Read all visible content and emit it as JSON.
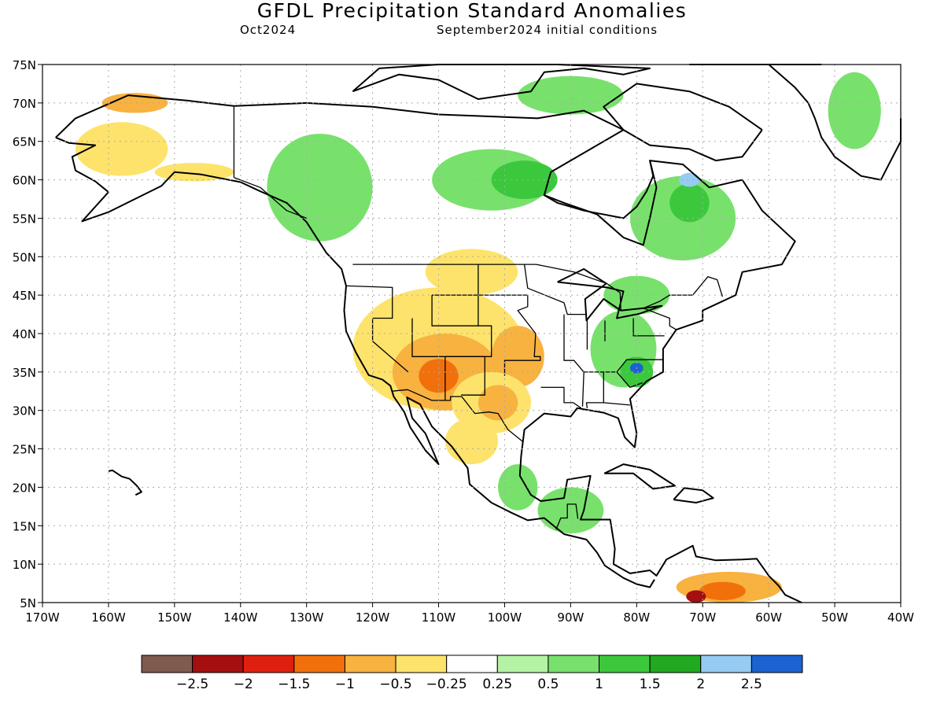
{
  "title": "GFDL Precipitation Standard Anomalies",
  "subtitle_left": "Oct2024",
  "subtitle_right": "September2024 initial conditions",
  "map": {
    "lon_range": [
      -170,
      -40
    ],
    "lat_range": [
      5,
      75
    ],
    "lon_ticks": [
      "170W",
      "160W",
      "150W",
      "140W",
      "130W",
      "120W",
      "110W",
      "100W",
      "90W",
      "80W",
      "70W",
      "60W",
      "50W",
      "40W"
    ],
    "lat_ticks": [
      "75N",
      "70N",
      "65N",
      "60N",
      "55N",
      "50N",
      "45N",
      "40N",
      "35N",
      "30N",
      "25N",
      "20N",
      "15N",
      "10N",
      "5N"
    ]
  },
  "colorbar": {
    "colors": [
      "#7f5a4e",
      "#a50f0f",
      "#e0200e",
      "#f2700c",
      "#f8b23f",
      "#fde36b",
      "#ffffff",
      "#b4f2a4",
      "#78e16c",
      "#3cc83c",
      "#22a922",
      "#96cbf3",
      "#1c62d1"
    ],
    "labels": [
      "−2.5",
      "−2",
      "−1.5",
      "−1",
      "−0.5",
      "−0.25",
      "0.25",
      "0.5",
      "1",
      "1.5",
      "2",
      "2.5"
    ]
  },
  "anomaly_regions": [
    {
      "name": "alaska-west",
      "level": -0.5,
      "lon": -158,
      "lat": 64,
      "rx": 7,
      "ry": 3.5
    },
    {
      "name": "alaska-north",
      "level": -1,
      "lon": -156,
      "lat": 70,
      "rx": 5,
      "ry": 1.3
    },
    {
      "name": "alaska-south",
      "level": -0.5,
      "lon": -147,
      "lat": 61,
      "rx": 6,
      "ry": 1.2
    },
    {
      "name": "northwest-canada",
      "level": 0.5,
      "lon": -128,
      "lat": 59,
      "rx": 8,
      "ry": 7
    },
    {
      "name": "canada-central",
      "level": 0.5,
      "lon": -102,
      "lat": 60,
      "rx": 9,
      "ry": 4
    },
    {
      "name": "canada-central-core",
      "level": 1,
      "lon": -97,
      "lat": 60,
      "rx": 5,
      "ry": 2.5
    },
    {
      "name": "arctic-islands",
      "level": 0.5,
      "lon": -90,
      "lat": 71,
      "rx": 8,
      "ry": 2.5
    },
    {
      "name": "quebec",
      "level": 0.5,
      "lon": -73,
      "lat": 55,
      "rx": 8,
      "ry": 5.5
    },
    {
      "name": "quebec-core",
      "level": 1,
      "lon": -72,
      "lat": 57,
      "rx": 3,
      "ry": 2.5
    },
    {
      "name": "quebec-wet",
      "level": 2,
      "lon": -72,
      "lat": 60,
      "rx": 1.6,
      "ry": 0.9
    },
    {
      "name": "greenland-east",
      "level": 0.5,
      "lon": -47,
      "lat": 69,
      "rx": 4,
      "ry": 5
    },
    {
      "name": "prairies-dry",
      "level": -0.5,
      "lon": -105,
      "lat": 48,
      "rx": 7,
      "ry": 3
    },
    {
      "name": "us-west-dry",
      "level": -0.5,
      "lon": -110,
      "lat": 38,
      "rx": 13,
      "ry": 8
    },
    {
      "name": "us-southwest-dry",
      "level": -1,
      "lon": -109,
      "lat": 35,
      "rx": 8,
      "ry": 5
    },
    {
      "name": "arizona-core",
      "level": -1.5,
      "lon": -110,
      "lat": 34.5,
      "rx": 3,
      "ry": 2.2
    },
    {
      "name": "plains-dry",
      "level": -1,
      "lon": -98,
      "lat": 37,
      "rx": 4,
      "ry": 4
    },
    {
      "name": "texas-dry",
      "level": -0.5,
      "lon": -102,
      "lat": 31,
      "rx": 6,
      "ry": 4
    },
    {
      "name": "texas-core",
      "level": -1,
      "lon": -101,
      "lat": 31,
      "rx": 3,
      "ry": 2.3
    },
    {
      "name": "mexico-dry",
      "level": -0.5,
      "lon": -105,
      "lat": 26,
      "rx": 4,
      "ry": 3
    },
    {
      "name": "eastern-us-wet",
      "level": 0.5,
      "lon": -82,
      "lat": 38,
      "rx": 5,
      "ry": 5
    },
    {
      "name": "carolinas-wet",
      "level": 1,
      "lon": -80,
      "lat": 35,
      "rx": 2.5,
      "ry": 2
    },
    {
      "name": "carolinas-core",
      "level": 2.5,
      "lon": -80,
      "lat": 35.5,
      "rx": 1,
      "ry": 0.7
    },
    {
      "name": "great-lakes-wet",
      "level": 0.5,
      "lon": -80,
      "lat": 45,
      "rx": 5,
      "ry": 2.5
    },
    {
      "name": "central-america-wet",
      "level": 0.5,
      "lon": -90,
      "lat": 17,
      "rx": 5,
      "ry": 3
    },
    {
      "name": "southern-mexico-wet",
      "level": 0.5,
      "lon": -98,
      "lat": 20,
      "rx": 3,
      "ry": 3
    },
    {
      "name": "venezuela-dry",
      "level": -1,
      "lon": -66,
      "lat": 7,
      "rx": 8,
      "ry": 2
    },
    {
      "name": "venezuela-core",
      "level": -1.5,
      "lon": -67,
      "lat": 6.5,
      "rx": 3.5,
      "ry": 1.2
    },
    {
      "name": "colombia-extreme",
      "level": -2.5,
      "lon": -71,
      "lat": 5.8,
      "rx": 1.5,
      "ry": 0.8
    }
  ]
}
